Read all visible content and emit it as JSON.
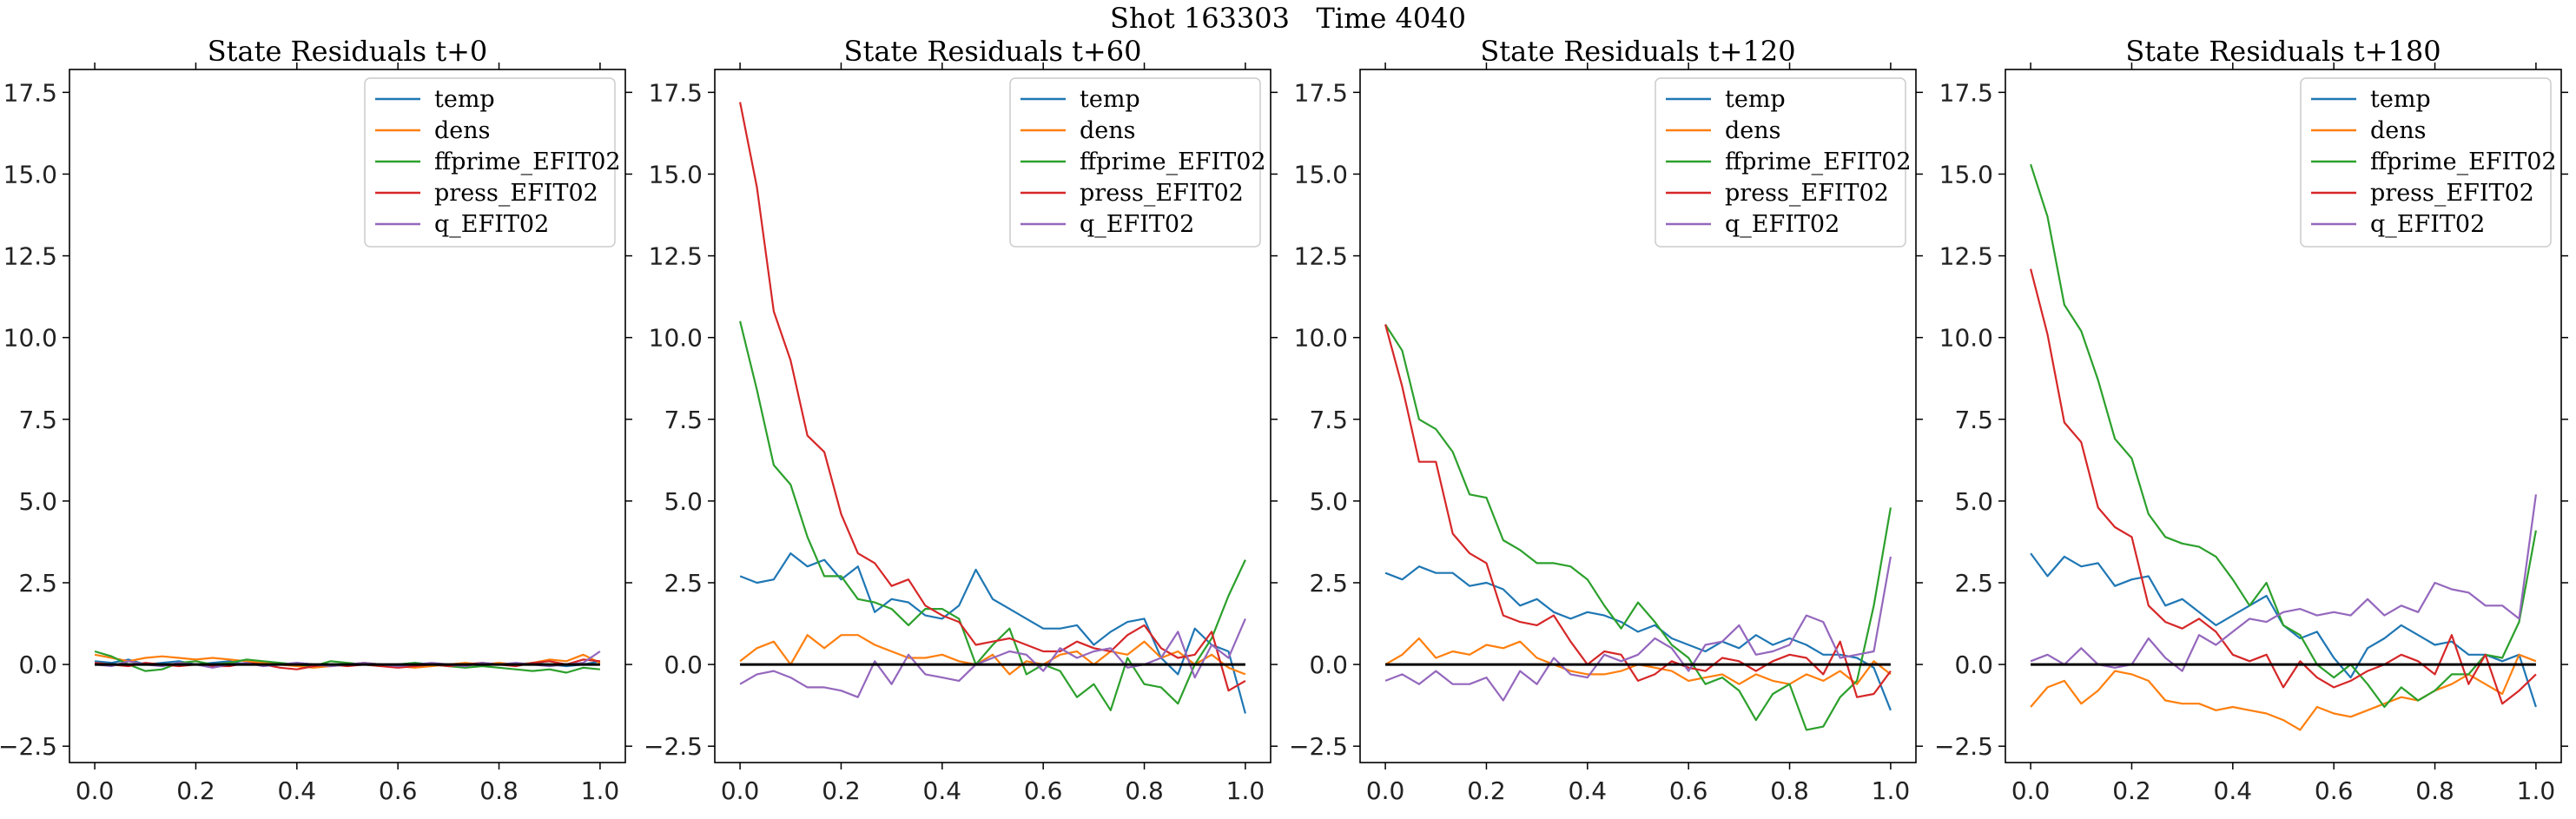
{
  "figure": {
    "suptitle": "Shot 163303   Time 4040"
  },
  "chart_data": [
    {
      "type": "line",
      "title": "State Residuals t+0",
      "xlim": [
        -0.05,
        1.05
      ],
      "ylim": [
        -3.0,
        18.2
      ],
      "xticks": [
        "0.0",
        "0.2",
        "0.4",
        "0.6",
        "0.8",
        "1.0"
      ],
      "yticks": [
        "−2.5",
        "0.0",
        "2.5",
        "5.0",
        "7.5",
        "10.0",
        "12.5",
        "15.0",
        "17.5"
      ],
      "legend_position": "upper right",
      "zero_line": true,
      "series": [
        {
          "name": "temp",
          "color": "#1f77b4",
          "values": [
            0.1,
            0.05,
            0.15,
            0.0,
            0.05,
            0.1,
            0.0,
            0.05,
            0.1,
            0.0,
            0.05,
            0.0,
            0.05,
            0.0,
            -0.05,
            0.0,
            0.05,
            0.0,
            0.0,
            0.05,
            0.0,
            -0.05,
            0.0,
            0.05,
            0.0,
            0.0,
            0.05,
            0.0,
            -0.05,
            0.0,
            0.1
          ]
        },
        {
          "name": "dens",
          "color": "#ff7f0e",
          "values": [
            0.3,
            0.2,
            0.1,
            0.2,
            0.25,
            0.2,
            0.15,
            0.2,
            0.15,
            0.1,
            0.05,
            0.0,
            -0.05,
            -0.1,
            -0.05,
            0.0,
            0.05,
            0.0,
            -0.05,
            -0.1,
            -0.05,
            0.0,
            0.05,
            0.0,
            0.05,
            0.0,
            0.05,
            0.15,
            0.1,
            0.3,
            0.05
          ]
        },
        {
          "name": "ffprime_EFIT02",
          "color": "#2ca02c",
          "values": [
            0.4,
            0.25,
            0.0,
            -0.2,
            -0.15,
            0.05,
            0.1,
            0.0,
            0.05,
            0.15,
            0.1,
            0.05,
            0.0,
            -0.05,
            0.1,
            0.05,
            0.0,
            -0.05,
            0.0,
            0.05,
            0.0,
            -0.05,
            -0.1,
            -0.05,
            -0.1,
            -0.15,
            -0.2,
            -0.15,
            -0.25,
            -0.1,
            -0.15
          ]
        },
        {
          "name": "press_EFIT02",
          "color": "#d62728",
          "values": [
            0.05,
            0.0,
            -0.05,
            0.05,
            0.0,
            -0.05,
            0.0,
            -0.05,
            -0.05,
            0.05,
            0.0,
            -0.1,
            -0.15,
            -0.05,
            0.0,
            -0.05,
            0.0,
            -0.05,
            -0.1,
            -0.05,
            0.0,
            -0.05,
            0.0,
            0.05,
            0.0,
            -0.05,
            0.05,
            0.1,
            0.0,
            0.15,
            0.1
          ]
        },
        {
          "name": "q_EFIT02",
          "color": "#9467bd",
          "values": [
            0.0,
            -0.05,
            0.1,
            0.0,
            -0.05,
            0.05,
            0.0,
            -0.1,
            0.0,
            0.05,
            -0.05,
            0.0,
            0.05,
            0.0,
            -0.05,
            0.0,
            0.05,
            0.0,
            -0.05,
            0.0,
            0.05,
            0.0,
            -0.05,
            0.05,
            0.0,
            0.05,
            0.0,
            -0.05,
            0.0,
            0.05,
            0.4
          ]
        }
      ]
    },
    {
      "type": "line",
      "title": "State Residuals t+60",
      "xlim": [
        -0.05,
        1.05
      ],
      "ylim": [
        -3.0,
        18.2
      ],
      "xticks": [
        "0.0",
        "0.2",
        "0.4",
        "0.6",
        "0.8",
        "1.0"
      ],
      "yticks": [
        "−2.5",
        "0.0",
        "2.5",
        "5.0",
        "7.5",
        "10.0",
        "12.5",
        "15.0",
        "17.5"
      ],
      "legend_position": "upper right",
      "zero_line": true,
      "series": [
        {
          "name": "temp",
          "color": "#1f77b4",
          "values": [
            2.7,
            2.5,
            2.6,
            3.4,
            3.0,
            3.2,
            2.6,
            3.0,
            1.6,
            2.0,
            1.9,
            1.5,
            1.4,
            1.8,
            2.9,
            2.0,
            1.7,
            1.4,
            1.1,
            1.1,
            1.2,
            0.6,
            1.0,
            1.3,
            1.4,
            0.2,
            -0.3,
            1.1,
            0.6,
            0.4,
            -1.5
          ]
        },
        {
          "name": "dens",
          "color": "#ff7f0e",
          "values": [
            0.1,
            0.5,
            0.7,
            0.0,
            0.9,
            0.5,
            0.9,
            0.9,
            0.6,
            0.4,
            0.2,
            0.2,
            0.3,
            0.1,
            0.0,
            0.3,
            -0.3,
            0.1,
            0.0,
            0.3,
            0.4,
            0.0,
            0.4,
            0.3,
            0.7,
            0.2,
            0.4,
            0.0,
            0.3,
            -0.1,
            -0.3
          ]
        },
        {
          "name": "ffprime_EFIT02",
          "color": "#2ca02c",
          "values": [
            10.5,
            8.4,
            6.1,
            5.5,
            3.9,
            2.7,
            2.7,
            2.0,
            1.9,
            1.7,
            1.2,
            1.7,
            1.7,
            1.4,
            0.0,
            0.6,
            1.1,
            -0.3,
            0.0,
            -0.2,
            -1.0,
            -0.6,
            -1.4,
            0.2,
            -0.6,
            -0.7,
            -1.2,
            0.0,
            0.8,
            2.1,
            3.2
          ]
        },
        {
          "name": "press_EFIT02",
          "color": "#d62728",
          "values": [
            17.2,
            14.6,
            10.8,
            9.3,
            7.0,
            6.5,
            4.6,
            3.4,
            3.1,
            2.4,
            2.6,
            1.8,
            1.5,
            1.3,
            0.6,
            0.7,
            0.8,
            0.6,
            0.4,
            0.4,
            0.7,
            0.5,
            0.4,
            0.9,
            1.2,
            0.5,
            0.2,
            0.3,
            1.0,
            -0.8,
            -0.5
          ]
        },
        {
          "name": "q_EFIT02",
          "color": "#9467bd",
          "values": [
            -0.6,
            -0.3,
            -0.2,
            -0.4,
            -0.7,
            -0.7,
            -0.8,
            -1.0,
            0.1,
            -0.6,
            0.3,
            -0.3,
            -0.4,
            -0.5,
            0.0,
            0.2,
            0.4,
            0.3,
            -0.2,
            0.5,
            0.2,
            0.4,
            0.5,
            -0.1,
            0.0,
            0.2,
            1.0,
            -0.4,
            0.6,
            0.2,
            1.4
          ]
        }
      ]
    },
    {
      "type": "line",
      "title": "State Residuals t+120",
      "xlim": [
        -0.05,
        1.05
      ],
      "ylim": [
        -3.0,
        18.2
      ],
      "xticks": [
        "0.0",
        "0.2",
        "0.4",
        "0.6",
        "0.8",
        "1.0"
      ],
      "yticks": [
        "−2.5",
        "0.0",
        "2.5",
        "5.0",
        "7.5",
        "10.0",
        "12.5",
        "15.0",
        "17.5"
      ],
      "legend_position": "upper right",
      "zero_line": true,
      "series": [
        {
          "name": "temp",
          "color": "#1f77b4",
          "values": [
            2.8,
            2.6,
            3.0,
            2.8,
            2.8,
            2.4,
            2.5,
            2.3,
            1.8,
            2.0,
            1.6,
            1.4,
            1.6,
            1.5,
            1.3,
            1.0,
            1.2,
            0.8,
            0.6,
            0.4,
            0.7,
            0.5,
            0.9,
            0.6,
            0.8,
            0.6,
            0.3,
            0.3,
            0.2,
            -0.1,
            -1.4
          ]
        },
        {
          "name": "dens",
          "color": "#ff7f0e",
          "values": [
            0.0,
            0.3,
            0.8,
            0.2,
            0.4,
            0.3,
            0.6,
            0.5,
            0.7,
            0.2,
            0.0,
            -0.2,
            -0.3,
            -0.3,
            -0.2,
            0.0,
            -0.1,
            -0.2,
            -0.5,
            -0.4,
            -0.3,
            -0.6,
            -0.3,
            -0.5,
            -0.6,
            -0.3,
            -0.5,
            -0.2,
            -0.6,
            0.1,
            -0.3
          ]
        },
        {
          "name": "ffprime_EFIT02",
          "color": "#2ca02c",
          "values": [
            10.4,
            9.6,
            7.5,
            7.2,
            6.5,
            5.2,
            5.1,
            3.8,
            3.5,
            3.1,
            3.1,
            3.0,
            2.6,
            1.8,
            1.1,
            1.9,
            1.3,
            0.6,
            0.2,
            -0.6,
            -0.4,
            -0.8,
            -1.7,
            -0.9,
            -0.6,
            -2.0,
            -1.9,
            -1.0,
            -0.5,
            1.8,
            4.8
          ]
        },
        {
          "name": "press_EFIT02",
          "color": "#d62728",
          "values": [
            10.4,
            8.5,
            6.2,
            6.2,
            4.0,
            3.4,
            3.1,
            1.5,
            1.3,
            1.2,
            1.5,
            0.7,
            0.0,
            0.4,
            0.3,
            -0.5,
            -0.3,
            0.1,
            -0.1,
            -0.2,
            0.2,
            0.1,
            -0.2,
            0.1,
            0.3,
            0.2,
            -0.3,
            0.7,
            -1.0,
            -0.9,
            -0.2
          ]
        },
        {
          "name": "q_EFIT02",
          "color": "#9467bd",
          "values": [
            -0.5,
            -0.3,
            -0.6,
            -0.2,
            -0.6,
            -0.6,
            -0.4,
            -1.1,
            -0.2,
            -0.6,
            0.2,
            -0.3,
            -0.4,
            0.3,
            0.1,
            0.3,
            0.8,
            0.5,
            -0.2,
            0.6,
            0.7,
            1.2,
            0.3,
            0.4,
            0.6,
            1.5,
            1.3,
            0.2,
            0.3,
            0.4,
            3.3
          ]
        }
      ]
    },
    {
      "type": "line",
      "title": "State Residuals t+180",
      "xlim": [
        -0.05,
        1.05
      ],
      "ylim": [
        -3.0,
        18.2
      ],
      "xticks": [
        "0.0",
        "0.2",
        "0.4",
        "0.6",
        "0.8",
        "1.0"
      ],
      "yticks": [
        "−2.5",
        "0.0",
        "2.5",
        "5.0",
        "7.5",
        "10.0",
        "12.5",
        "15.0",
        "17.5"
      ],
      "legend_position": "upper right",
      "zero_line": true,
      "series": [
        {
          "name": "temp",
          "color": "#1f77b4",
          "values": [
            3.4,
            2.7,
            3.3,
            3.0,
            3.1,
            2.4,
            2.6,
            2.7,
            1.8,
            2.0,
            1.6,
            1.2,
            1.5,
            1.8,
            2.1,
            1.2,
            0.8,
            1.0,
            0.2,
            -0.4,
            0.5,
            0.8,
            1.2,
            0.9,
            0.6,
            0.7,
            0.3,
            0.3,
            0.1,
            0.3,
            -1.3
          ]
        },
        {
          "name": "dens",
          "color": "#ff7f0e",
          "values": [
            -1.3,
            -0.7,
            -0.5,
            -1.2,
            -0.8,
            -0.2,
            -0.3,
            -0.5,
            -1.1,
            -1.2,
            -1.2,
            -1.4,
            -1.3,
            -1.4,
            -1.5,
            -1.7,
            -2.0,
            -1.3,
            -1.5,
            -1.6,
            -1.4,
            -1.2,
            -1.0,
            -1.1,
            -0.8,
            -0.6,
            -0.3,
            -0.6,
            -0.9,
            0.3,
            0.1
          ]
        },
        {
          "name": "ffprime_EFIT02",
          "color": "#2ca02c",
          "values": [
            15.3,
            13.7,
            11.0,
            10.2,
            8.7,
            6.9,
            6.3,
            4.6,
            3.9,
            3.7,
            3.6,
            3.3,
            2.6,
            1.8,
            2.5,
            1.2,
            0.9,
            0.0,
            -0.4,
            0.0,
            -0.6,
            -1.3,
            -0.7,
            -1.1,
            -0.8,
            -0.3,
            -0.3,
            0.3,
            0.2,
            1.3,
            4.1
          ]
        },
        {
          "name": "press_EFIT02",
          "color": "#d62728",
          "values": [
            12.1,
            10.1,
            7.4,
            6.8,
            4.8,
            4.2,
            3.9,
            1.8,
            1.3,
            1.1,
            1.4,
            1.0,
            0.3,
            0.1,
            0.3,
            -0.7,
            0.1,
            -0.4,
            -0.7,
            -0.5,
            -0.2,
            0.0,
            0.3,
            0.1,
            -0.3,
            0.9,
            -0.6,
            0.3,
            -1.2,
            -0.8,
            -0.3
          ]
        },
        {
          "name": "q_EFIT02",
          "color": "#9467bd",
          "values": [
            0.1,
            0.3,
            0.0,
            0.5,
            0.0,
            -0.1,
            0.0,
            0.8,
            0.2,
            -0.2,
            0.9,
            0.6,
            1.0,
            1.4,
            1.3,
            1.6,
            1.7,
            1.5,
            1.6,
            1.5,
            2.0,
            1.5,
            1.8,
            1.6,
            2.5,
            2.3,
            2.2,
            1.8,
            1.8,
            1.4,
            5.2
          ]
        }
      ]
    }
  ]
}
